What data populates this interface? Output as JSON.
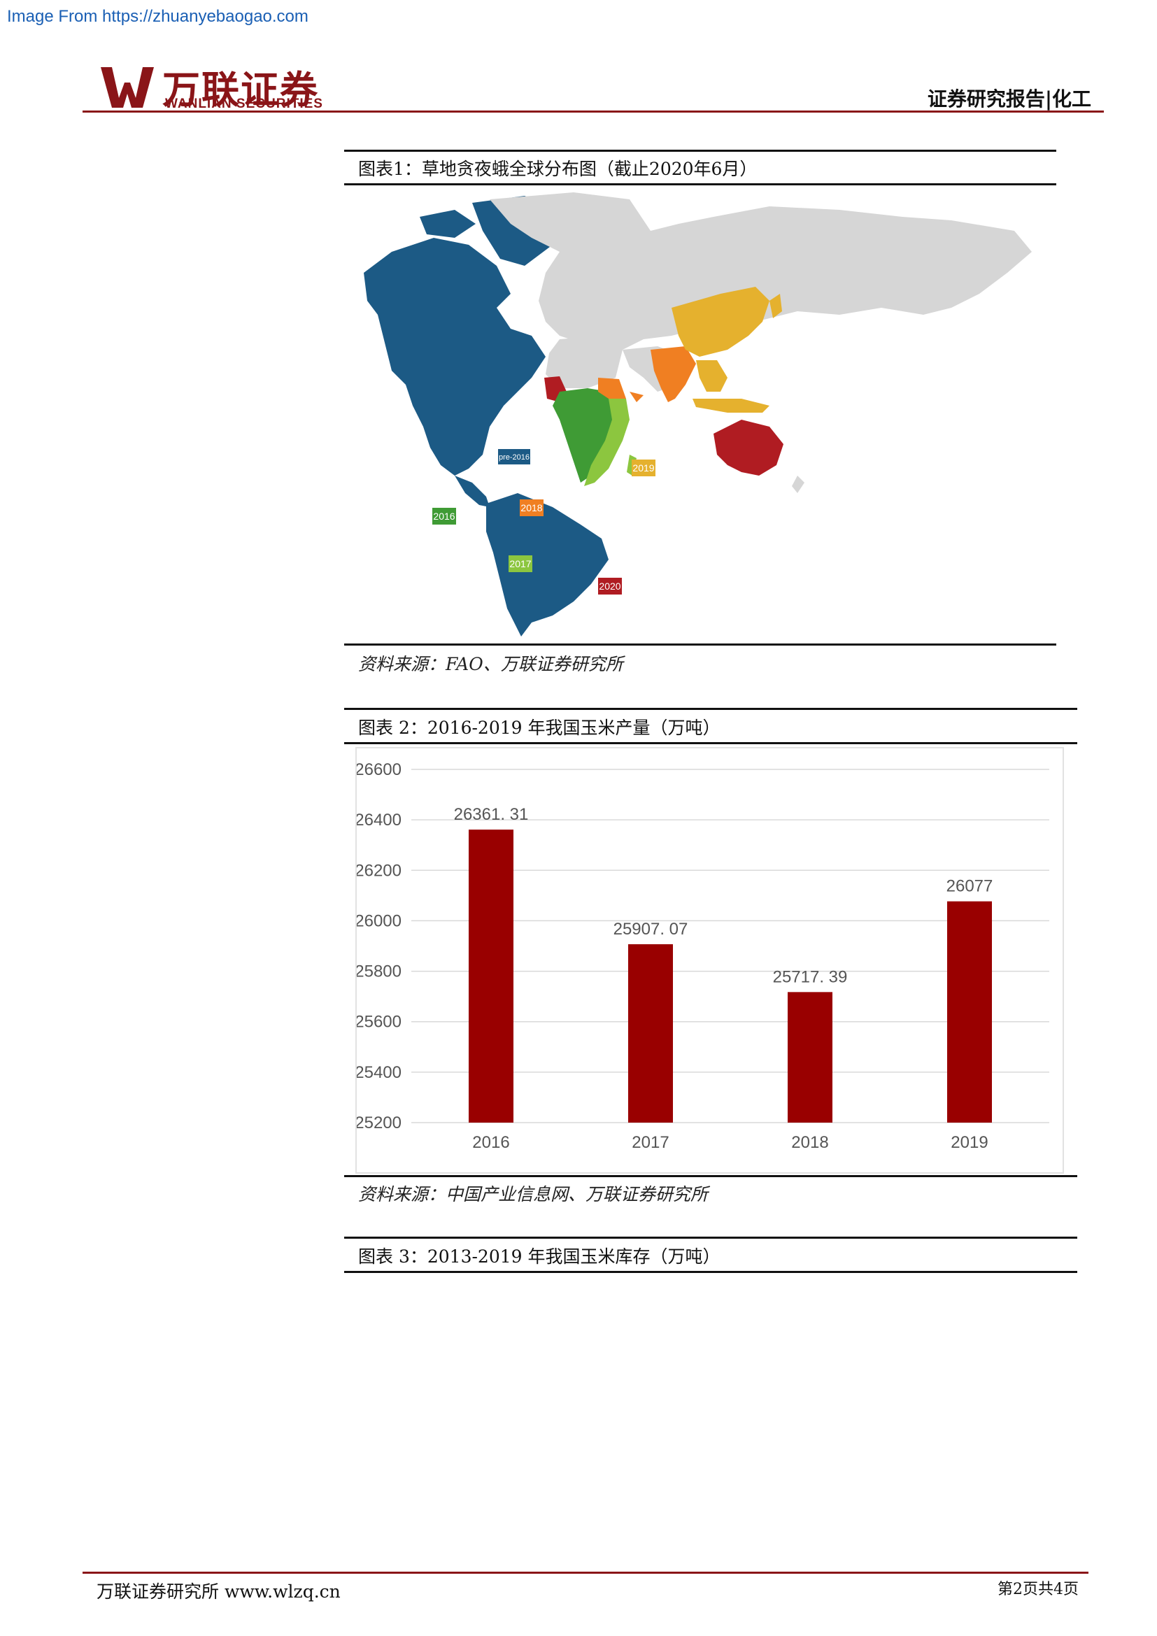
{
  "source_url": "Image From https://zhuanyebaogao.com",
  "brand": {
    "name_cn": "万联证券",
    "name_en": "WANLIAN SECURITIES",
    "color": "#8a1518"
  },
  "header": {
    "tag": "证券研究报告|化工"
  },
  "figure1": {
    "title": "图表1：草地贪夜蛾全球分布图（截止2020年6月）",
    "legend": [
      {
        "label": "pre-2016",
        "color": "#1c5a85"
      },
      {
        "label": "2016",
        "color": "#3f9b35"
      },
      {
        "label": "2017",
        "color": "#8cc63f"
      },
      {
        "label": "2018",
        "color": "#f07f22"
      },
      {
        "label": "2019",
        "color": "#e5b12e"
      },
      {
        "label": "2020",
        "color": "#b01c22"
      }
    ],
    "source": "资料来源：FAO、万联证券研究所"
  },
  "figure2": {
    "title": "图表 2：2016-2019 年我国玉米产量（万吨）",
    "source": "资料来源：中国产业信息网、万联证券研究所"
  },
  "chart_data": {
    "type": "bar",
    "categories": [
      "2016",
      "2017",
      "2018",
      "2019"
    ],
    "values": [
      26361.31,
      25907.07,
      25717.39,
      26077
    ],
    "value_labels": [
      "26361. 31",
      "25907. 07",
      "25717. 39",
      "26077"
    ],
    "ylim": [
      25200,
      26600
    ],
    "yticks": [
      25200,
      25400,
      25600,
      25800,
      26000,
      26200,
      26400,
      26600
    ],
    "bar_color": "#990000",
    "grid": true
  },
  "figure3": {
    "title": "图表 3：2013-2019 年我国玉米库存（万吨）"
  },
  "footer": {
    "left": "万联证券研究所 www.wlzq.cn",
    "right": "第2页共4页"
  }
}
